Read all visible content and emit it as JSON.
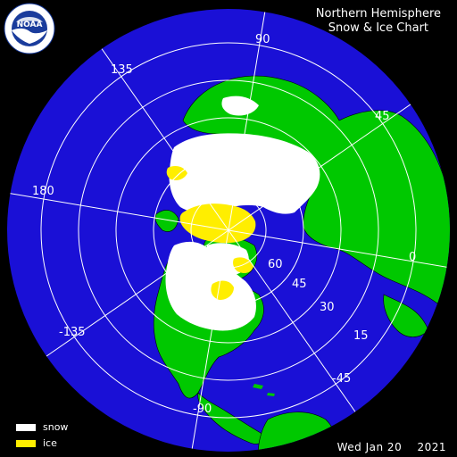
{
  "title": {
    "line1": "Northern Hemisphere",
    "line2": "Snow & Ice Chart"
  },
  "logo": {
    "text": "NOAA"
  },
  "legend": [
    {
      "label": "snow",
      "color": "#ffffff"
    },
    {
      "label": "ice",
      "color": "#ffee00"
    }
  ],
  "date": "Wed Jan 20    2021",
  "longitude_labels": [
    "90",
    "135",
    "45",
    "180",
    "0",
    "-135",
    "-45",
    "-90"
  ],
  "latitude_labels": [
    "60",
    "45",
    "30",
    "15"
  ],
  "colors": {
    "ocean": "#1a10d6",
    "land": "#00c800",
    "snow": "#ffffff",
    "ice": "#ffee00",
    "background": "#000000",
    "graticule": "#ffffff",
    "borders": "#000000"
  }
}
